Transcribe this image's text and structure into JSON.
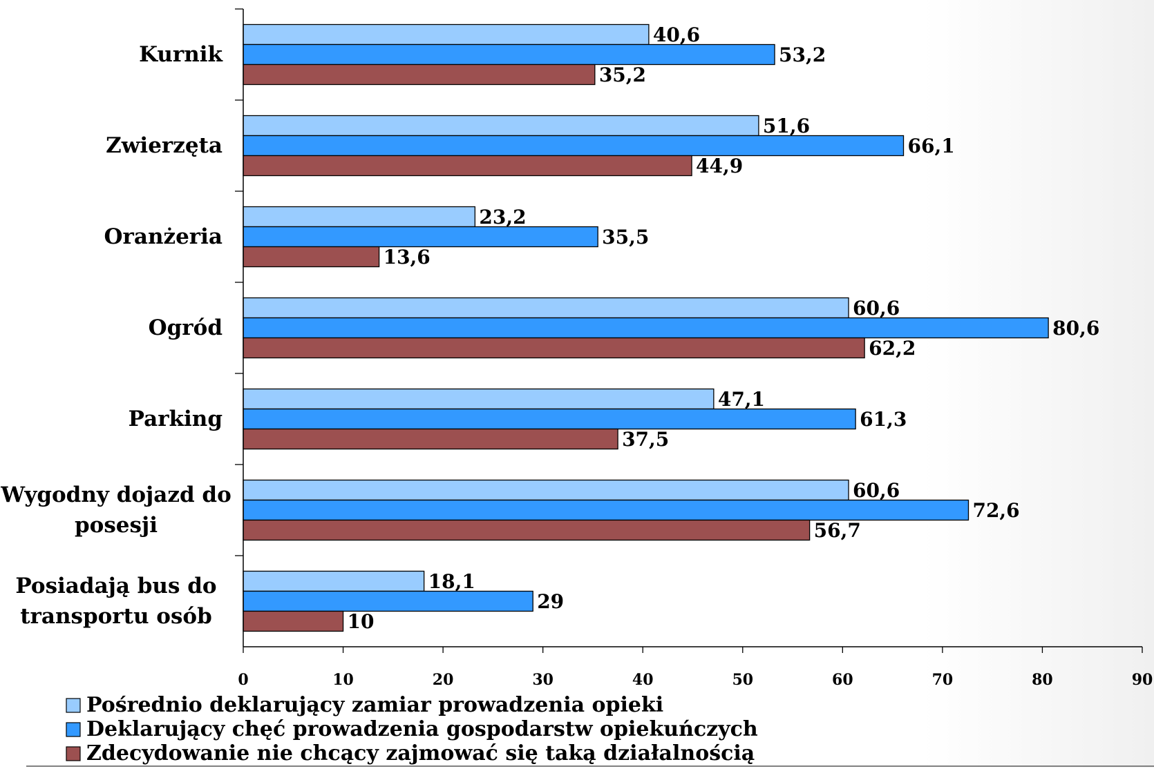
{
  "chart_data": {
    "type": "bar",
    "orientation": "horizontal",
    "categories": [
      [
        "Kurnik"
      ],
      [
        "Zwierzęta"
      ],
      [
        "Oranżeria"
      ],
      [
        "Ogród"
      ],
      [
        "Parking"
      ],
      [
        "Wygodny dojazd do",
        "posesji"
      ],
      [
        "Posiadają bus do",
        "transportu osób"
      ]
    ],
    "series": [
      {
        "name": "Pośrednio deklarujący zamiar prowadzenia opieki",
        "color": "#99ccff",
        "values": [
          40.6,
          51.6,
          23.2,
          60.6,
          47.1,
          60.6,
          18.1
        ],
        "labels": [
          "40,6",
          "51,6",
          "23,2",
          "60,6",
          "47,1",
          "60,6",
          "18,1"
        ]
      },
      {
        "name": "Deklarujący chęć prowadzenia gospodarstw opiekuńczych",
        "color": "#3399ff",
        "values": [
          53.2,
          66.1,
          35.5,
          80.6,
          61.3,
          72.6,
          29
        ],
        "labels": [
          "53,2",
          "66,1",
          "35,5",
          "80,6",
          "61,3",
          "72,6",
          "29"
        ]
      },
      {
        "name": "Zdecydowanie nie chcący zajmować się taką działalnością",
        "color": "#9c5050",
        "values": [
          35.2,
          44.9,
          13.6,
          62.2,
          37.5,
          56.7,
          10
        ],
        "labels": [
          "35,2",
          "44,9",
          "13,6",
          "62,2",
          "37,5",
          "56,7",
          "10"
        ]
      }
    ],
    "xlim": [
      0,
      90
    ],
    "xticks": [
      0,
      10,
      20,
      30,
      40,
      50,
      60,
      70,
      80,
      90
    ],
    "title": "",
    "xlabel": "",
    "ylabel": "",
    "grid": false,
    "legend": "bottom-left"
  }
}
